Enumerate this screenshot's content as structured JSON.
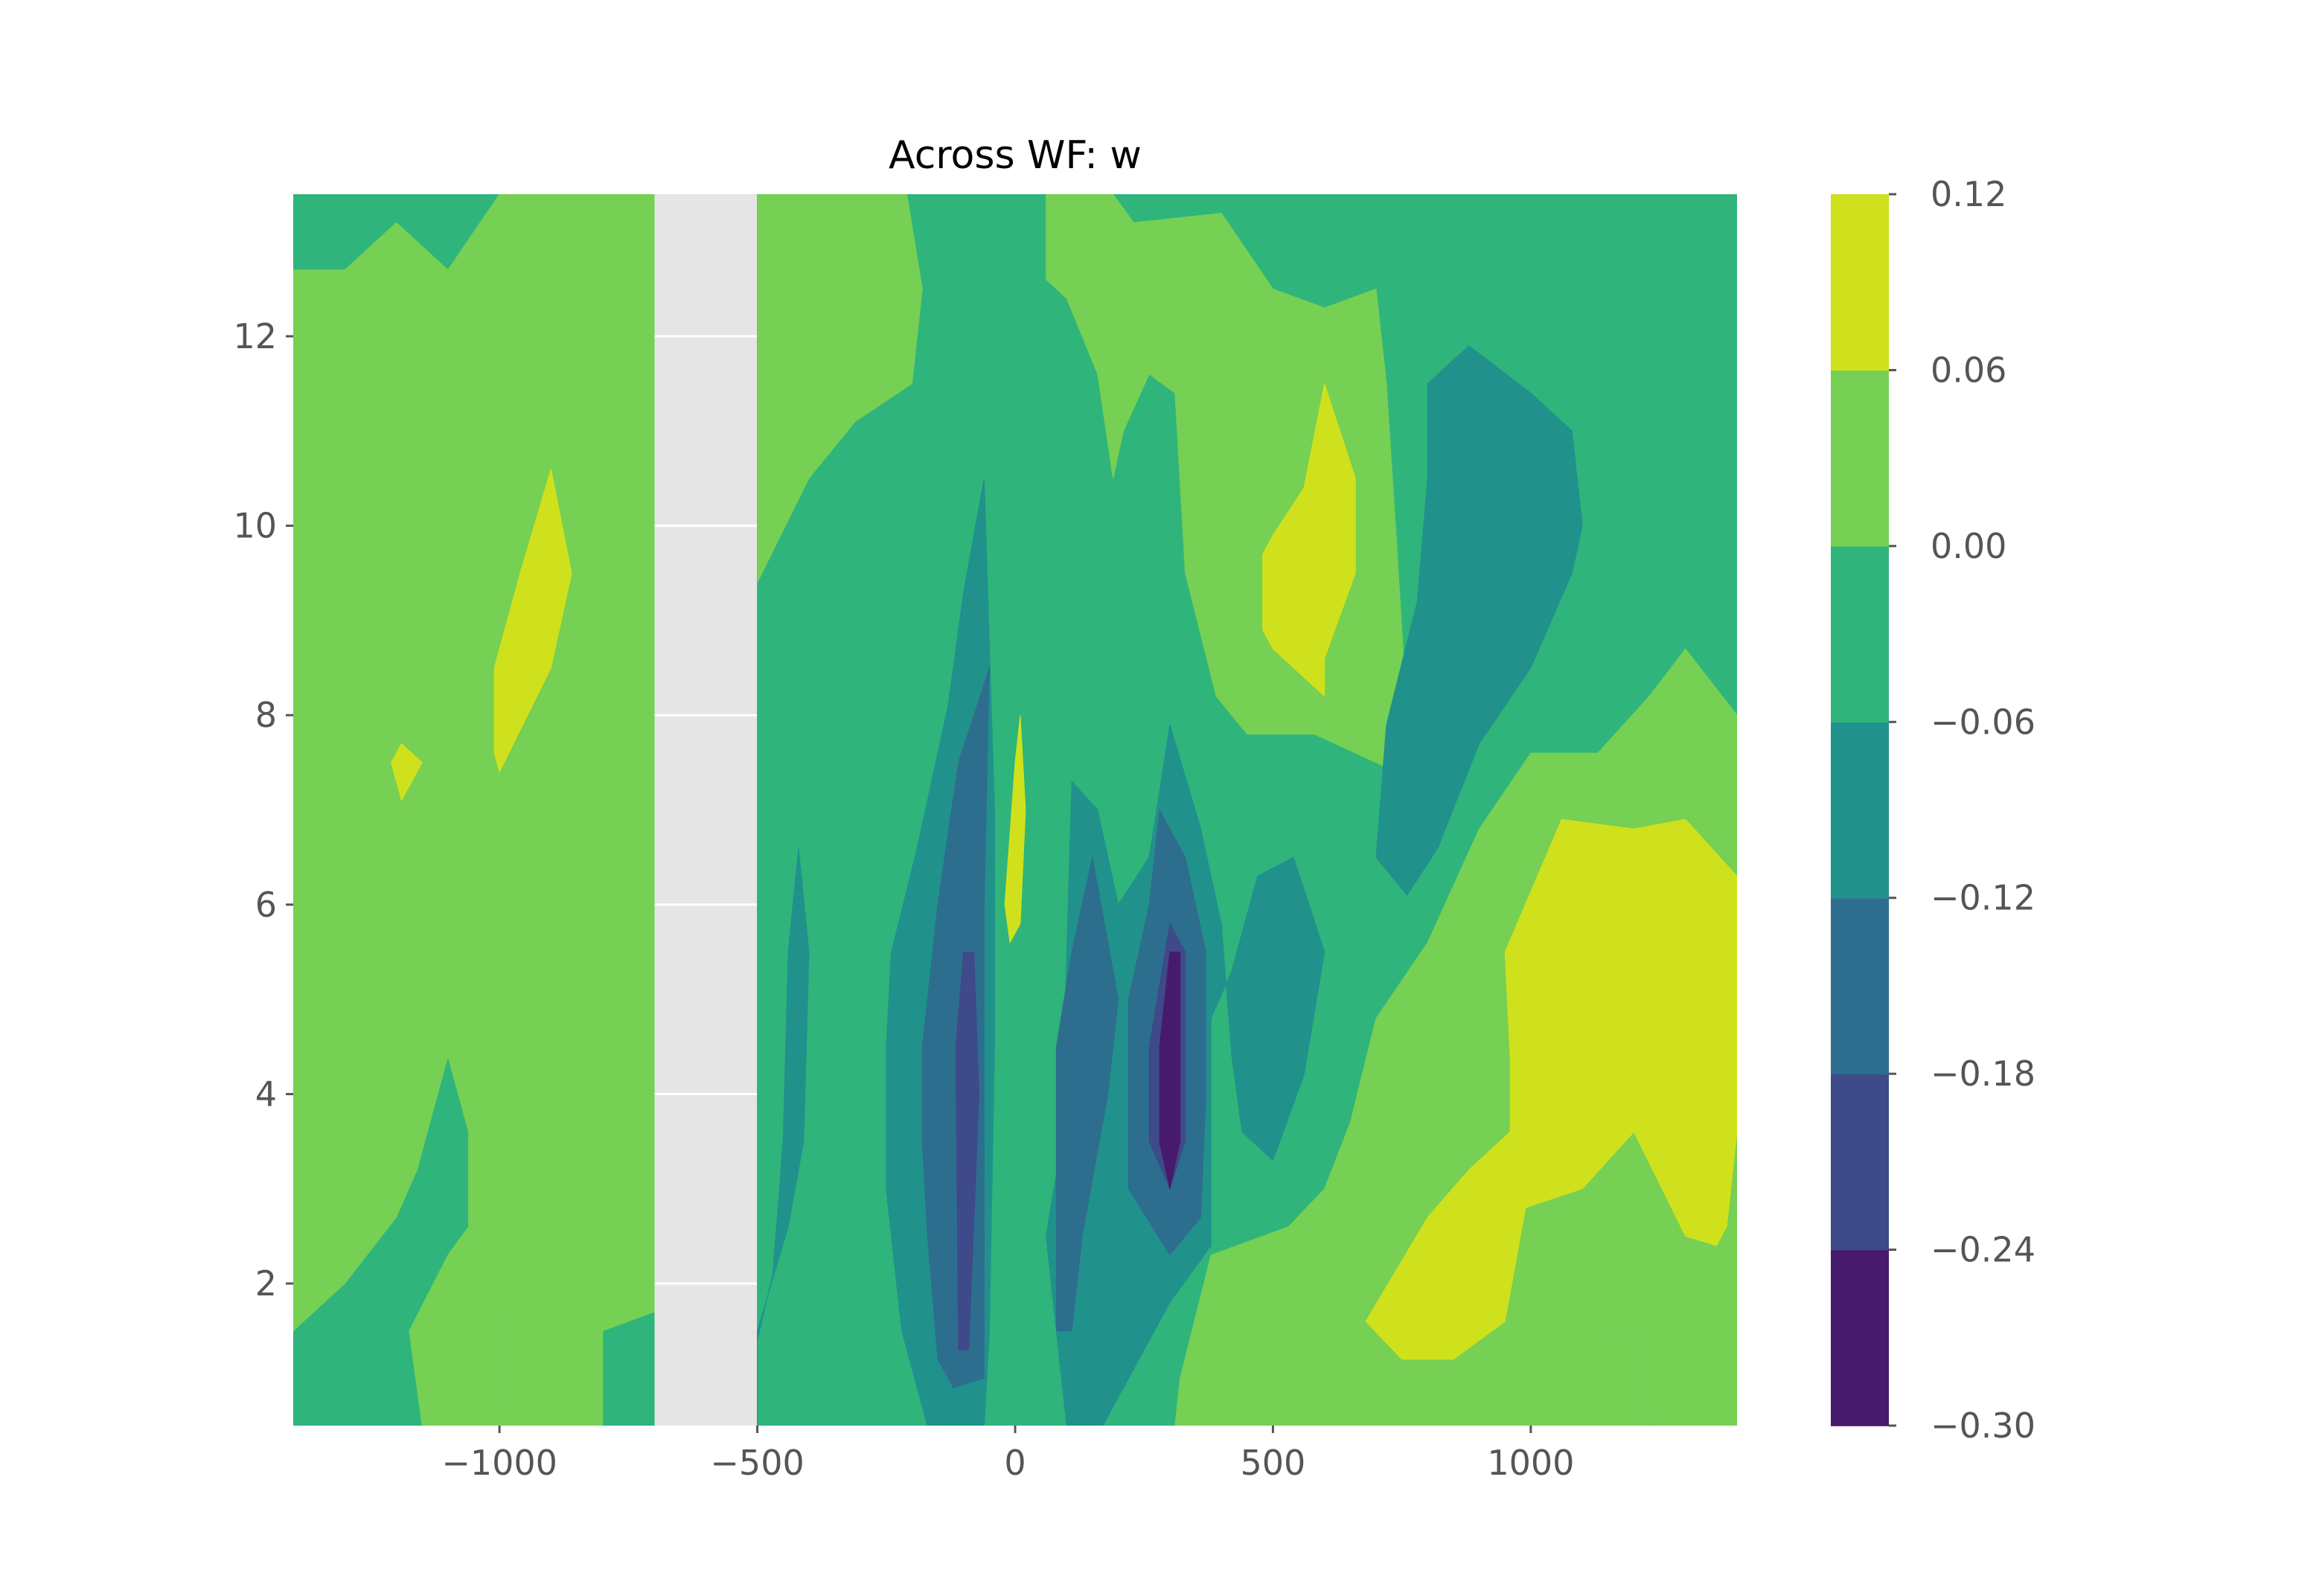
{
  "chart_data": {
    "type": "heatmap",
    "subtype": "filled-contour",
    "title": "Across WF: w",
    "xlabel": "",
    "ylabel": "",
    "xlim": [
      -1400,
      1400
    ],
    "ylim": [
      0.5,
      13.5
    ],
    "x_ticks": [
      -1000,
      -500,
      0,
      500,
      1000
    ],
    "x_tick_labels": [
      "−1000",
      "−500",
      "0",
      "500",
      "1000"
    ],
    "y_ticks": [
      2,
      4,
      6,
      8,
      10,
      12
    ],
    "y_tick_labels": [
      "2",
      "4",
      "6",
      "8",
      "10",
      "12"
    ],
    "masked_x_range": [
      -700,
      -500
    ],
    "background_color": "#e5e5e5",
    "grid": "white lines in masked region",
    "colorbar": {
      "levels": [
        -0.3,
        -0.24,
        -0.18,
        -0.12,
        -0.06,
        0.0,
        0.06,
        0.12
      ],
      "tick_labels": [
        "−0.30",
        "−0.24",
        "−0.18",
        "−0.12",
        "−0.06",
        "0.00",
        "0.06",
        "0.12"
      ],
      "colors": [
        "#481a6c",
        "#3e4a89",
        "#2d6e8e",
        "#21918c",
        "#2fb47c",
        "#75d054",
        "#cfe11c"
      ],
      "placement": "right",
      "colormap": "viridis"
    },
    "regions": [
      {
        "band": 4,
        "polygon": [
          [
            -1400,
            13.5
          ],
          [
            -700,
            13.5
          ],
          [
            -700,
            0.5
          ],
          [
            -1400,
            0.5
          ]
        ]
      },
      {
        "band": 5,
        "polygon": [
          [
            -1400,
            12.7
          ],
          [
            -1300,
            12.7
          ],
          [
            -1200,
            13.2
          ],
          [
            -1100,
            12.7
          ],
          [
            -1000,
            13.5
          ],
          [
            -700,
            13.5
          ],
          [
            -700,
            1.7
          ],
          [
            -800,
            1.5
          ],
          [
            -800,
            0.5
          ],
          [
            -1150,
            0.5
          ],
          [
            -1175,
            1.5
          ],
          [
            -1100,
            2.3
          ],
          [
            -1060,
            2.6
          ],
          [
            -1060,
            3.6
          ],
          [
            -1100,
            4.4
          ],
          [
            -1160,
            3.2
          ],
          [
            -1200,
            2.7
          ],
          [
            -1300,
            2.0
          ],
          [
            -1400,
            1.5
          ]
        ]
      },
      {
        "band": 6,
        "polygon": [
          [
            -1010,
            8.5
          ],
          [
            -960,
            9.5
          ],
          [
            -900,
            10.6
          ],
          [
            -860,
            9.5
          ],
          [
            -900,
            8.5
          ],
          [
            -1000,
            7.4
          ],
          [
            -1010,
            7.6
          ]
        ]
      },
      {
        "band": 6,
        "polygon": [
          [
            -1210,
            7.5
          ],
          [
            -1190,
            7.7
          ],
          [
            -1150,
            7.5
          ],
          [
            -1190,
            7.1
          ]
        ]
      },
      {
        "band": 4,
        "polygon": [
          [
            -500,
            13.5
          ],
          [
            1400,
            13.5
          ],
          [
            1400,
            0.5
          ],
          [
            -500,
            0.5
          ]
        ]
      },
      {
        "band": 5,
        "polygon": [
          [
            -500,
            13.5
          ],
          [
            -210,
            13.5
          ],
          [
            -180,
            12.5
          ],
          [
            -200,
            11.5
          ],
          [
            -310,
            11.1
          ],
          [
            -400,
            10.5
          ],
          [
            -500,
            9.4
          ]
        ]
      },
      {
        "band": 5,
        "polygon": [
          [
            60,
            13.5
          ],
          [
            190,
            13.5
          ],
          [
            230,
            13.2
          ],
          [
            400,
            13.3
          ],
          [
            500,
            12.5
          ],
          [
            600,
            12.3
          ],
          [
            700,
            12.5
          ],
          [
            720,
            11.5
          ],
          [
            740,
            9.8
          ],
          [
            760,
            8.0
          ],
          [
            740,
            7.4
          ],
          [
            580,
            7.8
          ],
          [
            450,
            7.8
          ],
          [
            390,
            8.2
          ],
          [
            330,
            9.5
          ],
          [
            310,
            11.4
          ],
          [
            260,
            11.6
          ],
          [
            210,
            11.0
          ],
          [
            190,
            10.5
          ],
          [
            160,
            11.6
          ],
          [
            100,
            12.4
          ],
          [
            60,
            12.6
          ]
        ]
      },
      {
        "band": 5,
        "polygon": [
          [
            1400,
            8.0
          ],
          [
            1300,
            8.7
          ],
          [
            1230,
            8.2
          ],
          [
            1130,
            7.6
          ],
          [
            1000,
            7.6
          ],
          [
            900,
            6.8
          ],
          [
            800,
            5.6
          ],
          [
            700,
            4.8
          ],
          [
            650,
            3.7
          ],
          [
            600,
            3.0
          ],
          [
            530,
            2.6
          ],
          [
            380,
            2.3
          ],
          [
            320,
            1.0
          ],
          [
            310,
            0.5
          ],
          [
            1400,
            0.5
          ]
        ]
      },
      {
        "band": 6,
        "polygon": [
          [
            480,
            9.7
          ],
          [
            500,
            9.9
          ],
          [
            560,
            10.4
          ],
          [
            600,
            11.5
          ],
          [
            660,
            10.5
          ],
          [
            660,
            9.5
          ],
          [
            600,
            8.6
          ],
          [
            600,
            8.2
          ],
          [
            500,
            8.7
          ],
          [
            480,
            8.9
          ]
        ]
      },
      {
        "band": 6,
        "polygon": [
          [
            950,
            5.5
          ],
          [
            1060,
            6.9
          ],
          [
            1200,
            6.8
          ],
          [
            1300,
            6.9
          ],
          [
            1400,
            6.3
          ],
          [
            1400,
            4.5
          ],
          [
            1400,
            3.6
          ],
          [
            1380,
            2.6
          ],
          [
            1360,
            2.4
          ],
          [
            1300,
            2.5
          ],
          [
            1200,
            3.6
          ],
          [
            1100,
            3.0
          ],
          [
            990,
            2.8
          ],
          [
            950,
            1.6
          ],
          [
            850,
            1.2
          ],
          [
            750,
            1.2
          ],
          [
            680,
            1.6
          ],
          [
            800,
            2.7
          ],
          [
            880,
            3.2
          ],
          [
            960,
            3.6
          ],
          [
            960,
            4.4
          ]
        ]
      },
      {
        "band": 3,
        "polygon": [
          [
            800,
            11.5
          ],
          [
            880,
            11.9
          ],
          [
            1000,
            11.4
          ],
          [
            1080,
            11.0
          ],
          [
            1100,
            10.0
          ],
          [
            1080,
            9.5
          ],
          [
            1000,
            8.5
          ],
          [
            900,
            7.7
          ],
          [
            820,
            6.6
          ],
          [
            760,
            6.1
          ],
          [
            700,
            6.5
          ],
          [
            720,
            7.9
          ],
          [
            780,
            9.2
          ],
          [
            800,
            10.5
          ]
        ]
      },
      {
        "band": 3,
        "polygon": [
          [
            -500,
            0.5
          ],
          [
            -500,
            1.5
          ],
          [
            -440,
            2.6
          ],
          [
            -410,
            3.5
          ],
          [
            -400,
            5.5
          ],
          [
            -420,
            6.6
          ],
          [
            -440,
            5.5
          ],
          [
            -450,
            3.5
          ],
          [
            -470,
            2.1
          ],
          [
            -500,
            1.4
          ]
        ]
      },
      {
        "band": 3,
        "polygon": [
          [
            -240,
            5.5
          ],
          [
            -190,
            6.6
          ],
          [
            -130,
            8.1
          ],
          [
            -100,
            9.3
          ],
          [
            -60,
            10.5
          ],
          [
            -40,
            7.0
          ],
          [
            -40,
            4.5
          ],
          [
            -50,
            1.5
          ],
          [
            -60,
            0.5
          ],
          [
            -170,
            0.5
          ],
          [
            -220,
            1.5
          ],
          [
            -250,
            3.0
          ],
          [
            -250,
            4.5
          ]
        ]
      },
      {
        "band": 3,
        "polygon": [
          [
            90,
            3.5
          ],
          [
            100,
            5.5
          ],
          [
            110,
            7.3
          ],
          [
            160,
            7.0
          ],
          [
            200,
            6.0
          ],
          [
            260,
            6.5
          ],
          [
            300,
            7.9
          ],
          [
            360,
            6.8
          ],
          [
            400,
            5.8
          ],
          [
            420,
            4.4
          ],
          [
            440,
            3.6
          ],
          [
            500,
            3.3
          ],
          [
            560,
            4.2
          ],
          [
            600,
            5.5
          ],
          [
            540,
            6.5
          ],
          [
            470,
            6.3
          ],
          [
            420,
            5.3
          ],
          [
            380,
            4.8
          ],
          [
            380,
            2.4
          ],
          [
            300,
            1.8
          ],
          [
            170,
            0.5
          ],
          [
            100,
            0.5
          ],
          [
            80,
            1.5
          ],
          [
            60,
            2.5
          ]
        ]
      },
      {
        "band": 2,
        "polygon": [
          [
            -180,
            4.5
          ],
          [
            -150,
            6.0
          ],
          [
            -110,
            7.5
          ],
          [
            -50,
            8.5
          ],
          [
            -60,
            6.0
          ],
          [
            -60,
            1.0
          ],
          [
            -120,
            0.9
          ],
          [
            -150,
            1.2
          ],
          [
            -170,
            2.5
          ],
          [
            -180,
            3.5
          ]
        ]
      },
      {
        "band": 2,
        "polygon": [
          [
            80,
            4.5
          ],
          [
            110,
            5.5
          ],
          [
            150,
            6.5
          ],
          [
            200,
            5.0
          ],
          [
            180,
            4.0
          ],
          [
            130,
            2.5
          ],
          [
            110,
            1.5
          ],
          [
            80,
            1.5
          ]
        ]
      },
      {
        "band": 2,
        "polygon": [
          [
            220,
            5.0
          ],
          [
            260,
            6.0
          ],
          [
            280,
            7.0
          ],
          [
            330,
            6.5
          ],
          [
            370,
            5.5
          ],
          [
            370,
            4.0
          ],
          [
            360,
            2.7
          ],
          [
            300,
            2.3
          ],
          [
            220,
            3.0
          ]
        ]
      },
      {
        "band": 1,
        "polygon": [
          [
            -115,
            4.5
          ],
          [
            -100,
            5.5
          ],
          [
            -80,
            5.5
          ],
          [
            -70,
            4.0
          ],
          [
            -90,
            1.3
          ],
          [
            -110,
            1.3
          ]
        ]
      },
      {
        "band": 1,
        "polygon": [
          [
            260,
            4.5
          ],
          [
            300,
            5.8
          ],
          [
            330,
            5.5
          ],
          [
            330,
            3.5
          ],
          [
            300,
            3.0
          ],
          [
            260,
            3.5
          ]
        ]
      },
      {
        "band": 0,
        "polygon": [
          [
            280,
            4.5
          ],
          [
            300,
            5.5
          ],
          [
            320,
            5.5
          ],
          [
            320,
            3.5
          ],
          [
            300,
            3.0
          ],
          [
            280,
            3.5
          ]
        ]
      },
      {
        "band": 3,
        "polygon": [
          [
            500,
            4.5
          ],
          [
            520,
            5.5
          ],
          [
            540,
            4.5
          ],
          [
            520,
            4.2
          ]
        ]
      },
      {
        "band": 6,
        "polygon": [
          [
            -20,
            6.0
          ],
          [
            0,
            7.5
          ],
          [
            10,
            8.0
          ],
          [
            20,
            7.0
          ],
          [
            10,
            5.8
          ],
          [
            -10,
            5.6
          ]
        ]
      },
      {
        "band": 5,
        "polygon": [
          [
            1140,
            1.5
          ],
          [
            1200,
            1.5
          ],
          [
            1230,
            0.5
          ],
          [
            1140,
            0.5
          ]
        ]
      },
      {
        "band": 5,
        "polygon": [
          [
            -1000,
            1.7
          ],
          [
            -990,
            1.3
          ],
          [
            -980,
            0.8
          ],
          [
            -1000,
            1.3
          ]
        ]
      }
    ]
  }
}
